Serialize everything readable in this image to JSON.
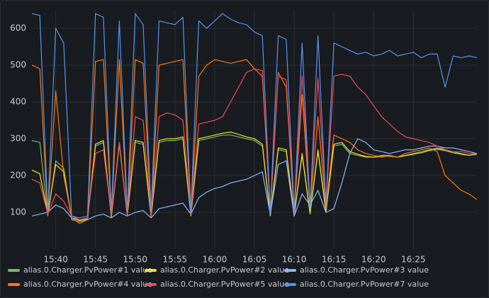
{
  "chart_data": {
    "type": "line",
    "x": [
      "15:37",
      "15:38",
      "15:39",
      "15:40",
      "15:41",
      "15:42",
      "15:43",
      "15:44",
      "15:45",
      "15:46",
      "15:47",
      "15:48",
      "15:49",
      "15:50",
      "15:51",
      "15:52",
      "15:53",
      "15:54",
      "15:55",
      "15:56",
      "15:57",
      "15:58",
      "15:59",
      "16:00",
      "16:01",
      "16:02",
      "16:03",
      "16:04",
      "16:05",
      "16:06",
      "16:07",
      "16:08",
      "16:09",
      "16:10",
      "16:11",
      "16:12",
      "16:13",
      "16:14",
      "16:15",
      "16:16",
      "16:17",
      "16:18",
      "16:19",
      "16:20",
      "16:21",
      "16:22",
      "16:23",
      "16:24",
      "16:25",
      "16:26",
      "16:27",
      "16:28",
      "16:29",
      "16:30",
      "16:31",
      "16:32",
      "16:33"
    ],
    "series": [
      {
        "name": "alias.0.Charger.PvPower#1 value",
        "color": "#73bf69",
        "values": [
          295,
          290,
          90,
          240,
          220,
          80,
          75,
          80,
          280,
          290,
          85,
          285,
          90,
          290,
          285,
          85,
          290,
          295,
          295,
          300,
          90,
          295,
          300,
          305,
          310,
          310,
          305,
          300,
          295,
          280,
          90,
          270,
          265,
          90,
          255,
          95,
          265,
          100,
          280,
          285,
          260,
          255,
          250,
          250,
          255,
          255,
          250,
          255,
          260,
          265,
          270,
          275,
          270,
          265,
          260,
          255,
          260
        ]
      },
      {
        "name": "alias.0.Charger.PvPower#2 value",
        "color": "#fade2a",
        "values": [
          215,
          205,
          95,
          230,
          210,
          85,
          78,
          82,
          285,
          295,
          90,
          290,
          92,
          295,
          290,
          88,
          295,
          300,
          300,
          305,
          92,
          300,
          305,
          310,
          315,
          318,
          312,
          305,
          300,
          285,
          92,
          275,
          270,
          92,
          260,
          98,
          270,
          102,
          285,
          290,
          265,
          258,
          252,
          250,
          252,
          253,
          250,
          254,
          258,
          262,
          268,
          272,
          268,
          262,
          258,
          255,
          258
        ]
      },
      {
        "name": "alias.0.Charger.PvPower#3 value",
        "color": "#8ab8ff",
        "values": [
          90,
          95,
          100,
          120,
          110,
          85,
          80,
          80,
          90,
          95,
          85,
          100,
          90,
          100,
          105,
          85,
          110,
          115,
          120,
          125,
          95,
          140,
          155,
          165,
          170,
          180,
          185,
          190,
          200,
          210,
          95,
          230,
          240,
          90,
          150,
          120,
          160,
          100,
          110,
          180,
          260,
          300,
          290,
          270,
          265,
          260,
          265,
          270,
          270,
          275,
          280,
          280,
          275,
          275,
          270,
          265,
          260
        ]
      },
      {
        "name": "alias.0.Charger.PvPower#4 value",
        "color": "#ff780a",
        "values": [
          500,
          490,
          90,
          430,
          200,
          85,
          70,
          80,
          510,
          515,
          90,
          515,
          90,
          515,
          505,
          85,
          500,
          505,
          510,
          515,
          95,
          470,
          500,
          515,
          510,
          505,
          510,
          515,
          490,
          470,
          100,
          480,
          440,
          95,
          420,
          110,
          360,
          110,
          310,
          300,
          290,
          270,
          260,
          255,
          250,
          255,
          250,
          260,
          265,
          270,
          275,
          265,
          200,
          180,
          160,
          150,
          135
        ]
      },
      {
        "name": "alias.0.Charger.PvPower#5 value",
        "color": "#f2495c",
        "values": [
          190,
          180,
          95,
          150,
          130,
          90,
          80,
          85,
          260,
          270,
          95,
          290,
          95,
          360,
          350,
          90,
          360,
          370,
          365,
          350,
          95,
          340,
          345,
          350,
          360,
          400,
          440,
          480,
          490,
          485,
          100,
          470,
          460,
          100,
          470,
          120,
          465,
          120,
          470,
          475,
          470,
          440,
          420,
          390,
          360,
          340,
          320,
          305,
          300,
          295,
          290,
          280,
          270,
          265,
          265,
          260,
          260
        ]
      },
      {
        "name": "alias.0.Charger.PvPower#7 value",
        "color": "#5794f2",
        "values": [
          640,
          635,
          100,
          600,
          560,
          90,
          85,
          90,
          640,
          630,
          100,
          620,
          100,
          640,
          610,
          100,
          620,
          615,
          610,
          630,
          100,
          620,
          600,
          620,
          640,
          625,
          615,
          610,
          590,
          580,
          100,
          580,
          570,
          100,
          560,
          110,
          580,
          120,
          560,
          550,
          540,
          530,
          535,
          525,
          530,
          540,
          525,
          530,
          535,
          520,
          530,
          530,
          440,
          525,
          520,
          525,
          520
        ]
      }
    ],
    "xlim": [
      "15:37",
      "16:33"
    ],
    "xticks": [
      "15:40",
      "15:45",
      "15:50",
      "15:55",
      "16:00",
      "16:05",
      "16:10",
      "16:15",
      "16:20",
      "16:25"
    ],
    "ylim": [
      0,
      650
    ],
    "yticks": [
      100,
      200,
      300,
      400,
      500,
      600
    ],
    "grid": true
  }
}
